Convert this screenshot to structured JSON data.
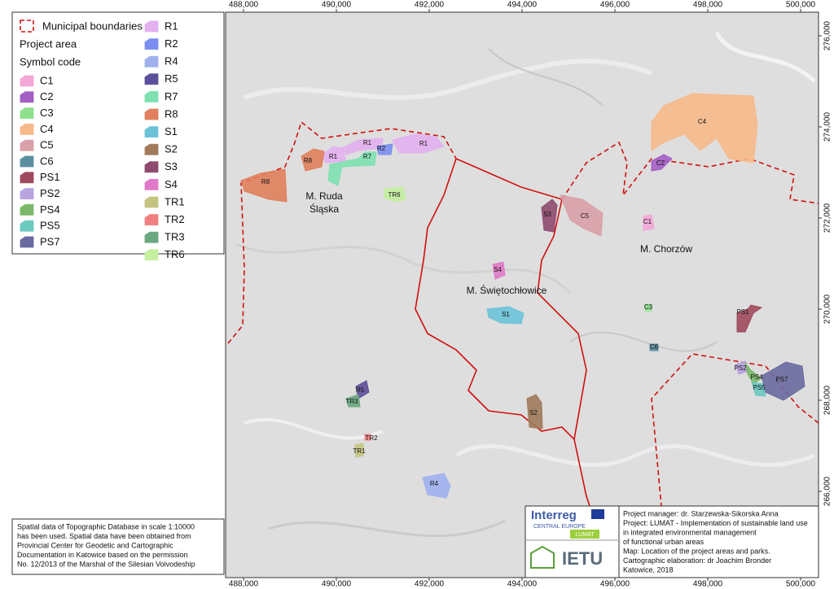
{
  "legend": {
    "boundary": "Municipal boundaries",
    "project_area": "Project area",
    "symbol_code": "Symbol code",
    "items": [
      {
        "code": "C1",
        "color": "#f4a6d7"
      },
      {
        "code": "C2",
        "color": "#a35fc4"
      },
      {
        "code": "C3",
        "color": "#8ee08e"
      },
      {
        "code": "C4",
        "color": "#f7b98a"
      },
      {
        "code": "C5",
        "color": "#d9a0a8"
      },
      {
        "code": "C6",
        "color": "#5a8fa0"
      },
      {
        "code": "PS1",
        "color": "#9e4a5c"
      },
      {
        "code": "PS2",
        "color": "#b9a3e0"
      },
      {
        "code": "PS4",
        "color": "#7bb86a"
      },
      {
        "code": "PS5",
        "color": "#6cc9c0"
      },
      {
        "code": "PS7",
        "color": "#6a6aa0"
      },
      {
        "code": "R1",
        "color": "#e3b0f0"
      },
      {
        "code": "R2",
        "color": "#7a8ef0"
      },
      {
        "code": "R4",
        "color": "#9fb0ee"
      },
      {
        "code": "R5",
        "color": "#5e4f9a"
      },
      {
        "code": "R7",
        "color": "#7ee0b0"
      },
      {
        "code": "R8",
        "color": "#e0805c"
      },
      {
        "code": "S1",
        "color": "#6cc3d8"
      },
      {
        "code": "S2",
        "color": "#a07a5a"
      },
      {
        "code": "S3",
        "color": "#8e4a6e"
      },
      {
        "code": "S4",
        "color": "#e07ac8"
      },
      {
        "code": "TR1",
        "color": "#c4c480"
      },
      {
        "code": "TR2",
        "color": "#f08080"
      },
      {
        "code": "TR3",
        "color": "#6aa880"
      },
      {
        "code": "TR6",
        "color": "#c4f0a0"
      }
    ]
  },
  "map": {
    "x_ticks": [
      "488,000",
      "490,000",
      "492,000",
      "494,000",
      "496,000",
      "498,000",
      "500,000"
    ],
    "y_ticks": [
      "276,000",
      "274,000",
      "272,000",
      "270,000",
      "268,000",
      "266,000"
    ],
    "places": [
      "M. Ruda",
      "Śląska",
      "M. Świętochłowice",
      "M. Chorzów"
    ],
    "areas": [
      {
        "label": "C4",
        "color": "#f7b98a"
      },
      {
        "label": "C2",
        "color": "#a35fc4"
      },
      {
        "label": "C5",
        "color": "#d9a0a8"
      },
      {
        "label": "C1",
        "color": "#f4a6d7"
      },
      {
        "label": "C3",
        "color": "#8ee08e"
      },
      {
        "label": "C6",
        "color": "#5a8fa0"
      },
      {
        "label": "PS1",
        "color": "#9e4a5c"
      },
      {
        "label": "PS2",
        "color": "#b9a3e0"
      },
      {
        "label": "PS4",
        "color": "#7bb86a"
      },
      {
        "label": "PS5",
        "color": "#6cc9c0"
      },
      {
        "label": "PS7",
        "color": "#6a6aa0"
      },
      {
        "label": "R1",
        "color": "#e3b0f0"
      },
      {
        "label": "R1",
        "color": "#e3b0f0"
      },
      {
        "label": "R1",
        "color": "#e3b0f0"
      },
      {
        "label": "R2",
        "color": "#7a8ef0"
      },
      {
        "label": "R7",
        "color": "#7ee0b0"
      },
      {
        "label": "R8",
        "color": "#e0805c"
      },
      {
        "label": "R8",
        "color": "#e0805c"
      },
      {
        "label": "TR6",
        "color": "#c4f0a0"
      },
      {
        "label": "S3",
        "color": "#8e4a6e"
      },
      {
        "label": "S4",
        "color": "#e07ac8"
      },
      {
        "label": "S1",
        "color": "#6cc3d8"
      },
      {
        "label": "S2",
        "color": "#a07a5a"
      },
      {
        "label": "R5",
        "color": "#5e4f9a"
      },
      {
        "label": "TR3",
        "color": "#6aa880"
      },
      {
        "label": "TR2",
        "color": "#f08080"
      },
      {
        "label": "TR1",
        "color": "#c4c480"
      },
      {
        "label": "R4",
        "color": "#9fb0ee"
      }
    ]
  },
  "note": {
    "lines": [
      "Spatial data of Topographic Database in scale 1:10000",
      "has been used. Spatial data have been obtained from",
      "Provincial Center for Geodetic and Cartographic",
      "Documentation in Katowice based on the permission",
      "No. 12/2013 of the Marshal of the Silesian Voivodeship"
    ]
  },
  "credits": {
    "logos": [
      "Interreg",
      "CENTRAL EUROPE",
      "LUMAT",
      "IETU"
    ],
    "lines": [
      "Project manager: dr. Starzewska-Sikorska Anna",
      "Project: LUMAT - Implementation of sustainable land use",
      "in integrated environmental management",
      "of functional urban areas",
      "Map: Location of the project areas and parks.",
      "Cartographic elaboration: dr Joachim Bronder",
      "Katowice, 2018"
    ]
  }
}
